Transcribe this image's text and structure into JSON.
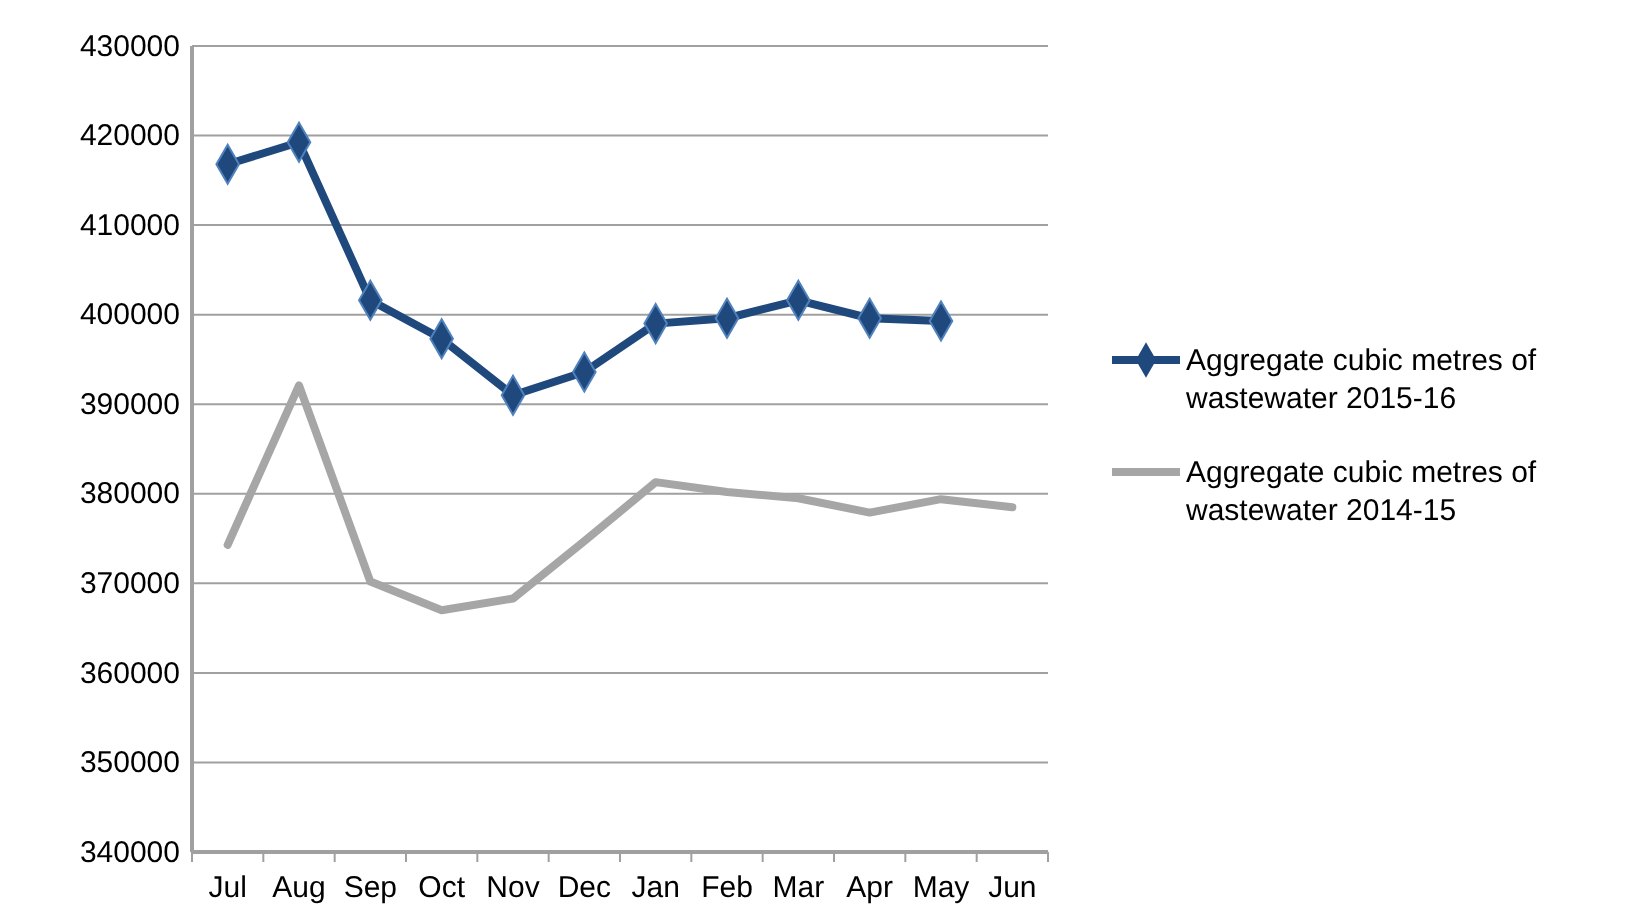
{
  "chart_data": {
    "type": "line",
    "categories": [
      "Jul",
      "Aug",
      "Sep",
      "Oct",
      "Nov",
      "Dec",
      "Jan",
      "Feb",
      "Mar",
      "Apr",
      "May",
      "Jun"
    ],
    "series": [
      {
        "name": "Aggregate cubic metres of wastewater 2015-16",
        "color": "#1f497d",
        "marker": "diamond",
        "values": [
          416800,
          419250,
          401600,
          397300,
          391000,
          393600,
          399000,
          399600,
          401600,
          399600,
          399300,
          null
        ]
      },
      {
        "name": "Aggregate cubic metres of wastewater 2014-15",
        "color": "#a6a6a6",
        "marker": "none",
        "values": [
          374300,
          392100,
          370200,
          367000,
          368300,
          374700,
          381300,
          380200,
          379500,
          377900,
          379400,
          378500
        ]
      }
    ],
    "ylim": [
      340000,
      430000
    ],
    "yticks": [
      340000,
      350000,
      360000,
      370000,
      380000,
      390000,
      400000,
      410000,
      420000,
      430000
    ],
    "grid": "y",
    "legend": "right"
  }
}
